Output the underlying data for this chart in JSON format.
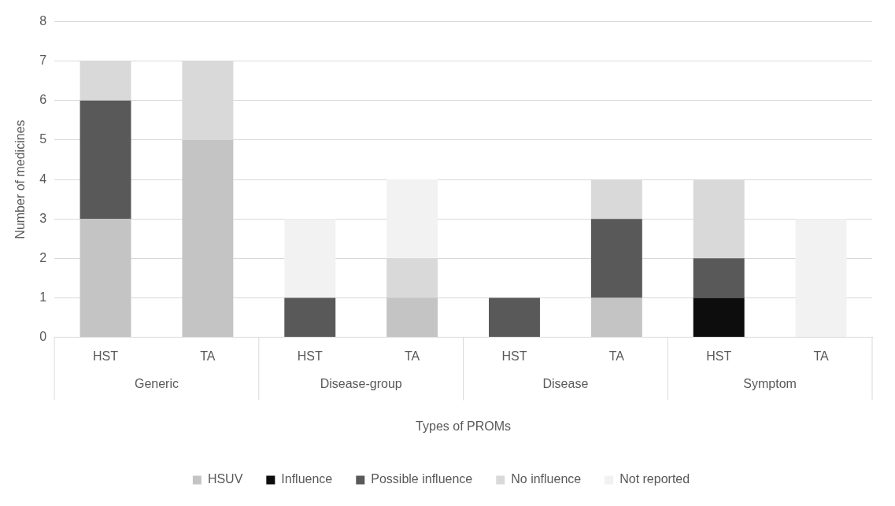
{
  "chart_data": {
    "type": "bar",
    "stacked": true,
    "xlabel": "Types of PROMs",
    "ylabel": "Number of medicines",
    "categories": [
      "HST",
      "TA",
      "HST",
      "TA",
      "HST",
      "TA",
      "HST",
      "TA"
    ],
    "annotations": [
      "Generic",
      "Disease-group",
      "Disease",
      "Symptom"
    ],
    "series": [
      {
        "name": "HSUV",
        "color": "#c4c4c4",
        "values": [
          3,
          5,
          null,
          1,
          null,
          1,
          null,
          null
        ]
      },
      {
        "name": "Influence",
        "color": "#0d0d0d",
        "values": [
          null,
          null,
          null,
          null,
          null,
          null,
          1,
          null
        ]
      },
      {
        "name": "Possible influence",
        "color": "#595959",
        "values": [
          3,
          null,
          1,
          null,
          1,
          2,
          1,
          null
        ]
      },
      {
        "name": "No influence",
        "color": "#d9d9d9",
        "values": [
          1,
          2,
          null,
          1,
          null,
          1,
          2,
          null
        ]
      },
      {
        "name": "Not reported",
        "color": "#f2f2f2",
        "values": [
          null,
          null,
          2,
          2,
          null,
          null,
          null,
          3
        ]
      }
    ],
    "ylim": [
      0,
      8
    ],
    "yticks": [
      0,
      1,
      2,
      3,
      4,
      5,
      6,
      7,
      8
    ],
    "grid": "y",
    "legend": "bottom"
  }
}
